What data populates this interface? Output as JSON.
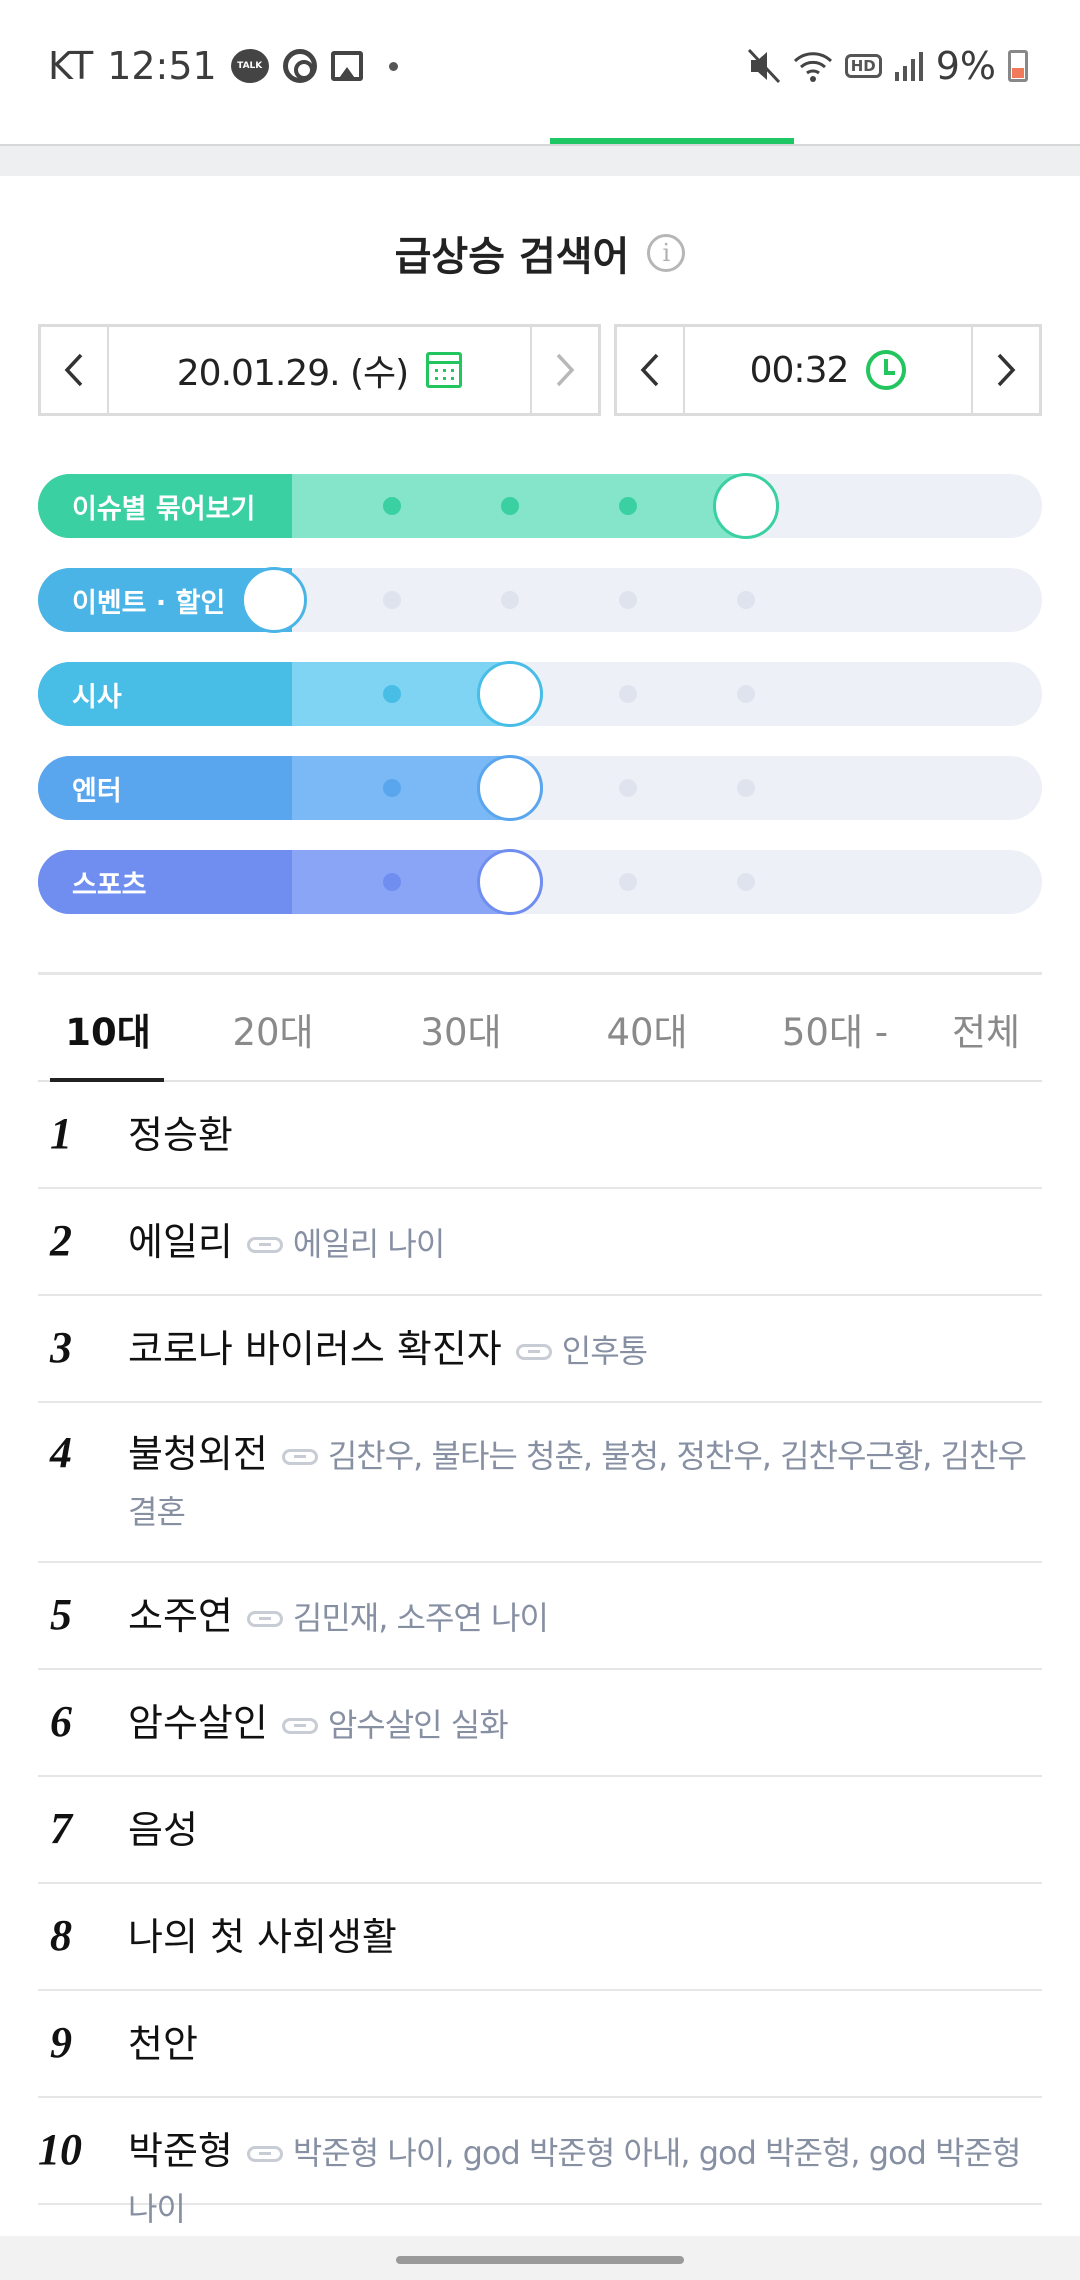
{
  "status_bar": {
    "carrier": "KT",
    "time": "12:51",
    "talk_icon_text": "TALK",
    "hd_label": "HD",
    "battery": "9%"
  },
  "header": {
    "title": "급상승 검색어"
  },
  "date_picker": {
    "date": "20.01.29. (수)"
  },
  "time_picker": {
    "time": "00:32"
  },
  "sliders": [
    {
      "label": "이슈별 묶어보기",
      "level": 4,
      "color": "#3ad0a1",
      "track": "#84e5cb"
    },
    {
      "label": "이벤트 · 할인",
      "level": 0,
      "color": "#4bb4e6",
      "track": "#eef0f7"
    },
    {
      "label": "시사",
      "level": 2,
      "color": "#48bde6",
      "track": "#7fd4f4"
    },
    {
      "label": "엔터",
      "level": 2,
      "color": "#5aa6ee",
      "track": "#7ab8f6"
    },
    {
      "label": "스포츠",
      "level": 2,
      "color": "#6f8ef0",
      "track": "#8aa5f6"
    }
  ],
  "age_tabs": [
    "10대",
    "20대",
    "30대",
    "40대",
    "50대 -",
    "전체"
  ],
  "ranking": [
    {
      "rank": "1",
      "keyword": "정승환",
      "related": ""
    },
    {
      "rank": "2",
      "keyword": "에일리",
      "related": "에일리 나이"
    },
    {
      "rank": "3",
      "keyword": "코로나 바이러스 확진자",
      "related": "인후통"
    },
    {
      "rank": "4",
      "keyword": "불청외전",
      "related": "김찬우, 불타는 청춘, 불청, 정찬우, 김찬우근황, 김찬우 결혼"
    },
    {
      "rank": "5",
      "keyword": "소주연",
      "related": "김민재, 소주연 나이"
    },
    {
      "rank": "6",
      "keyword": "암수살인",
      "related": "암수살인 실화"
    },
    {
      "rank": "7",
      "keyword": "음성",
      "related": ""
    },
    {
      "rank": "8",
      "keyword": "나의 첫 사회생활",
      "related": ""
    },
    {
      "rank": "9",
      "keyword": "천안",
      "related": ""
    },
    {
      "rank": "10",
      "keyword": "박준형",
      "related": "박준형 나이, god 박준형 아내, god 박준형, god 박준형 나이"
    }
  ]
}
